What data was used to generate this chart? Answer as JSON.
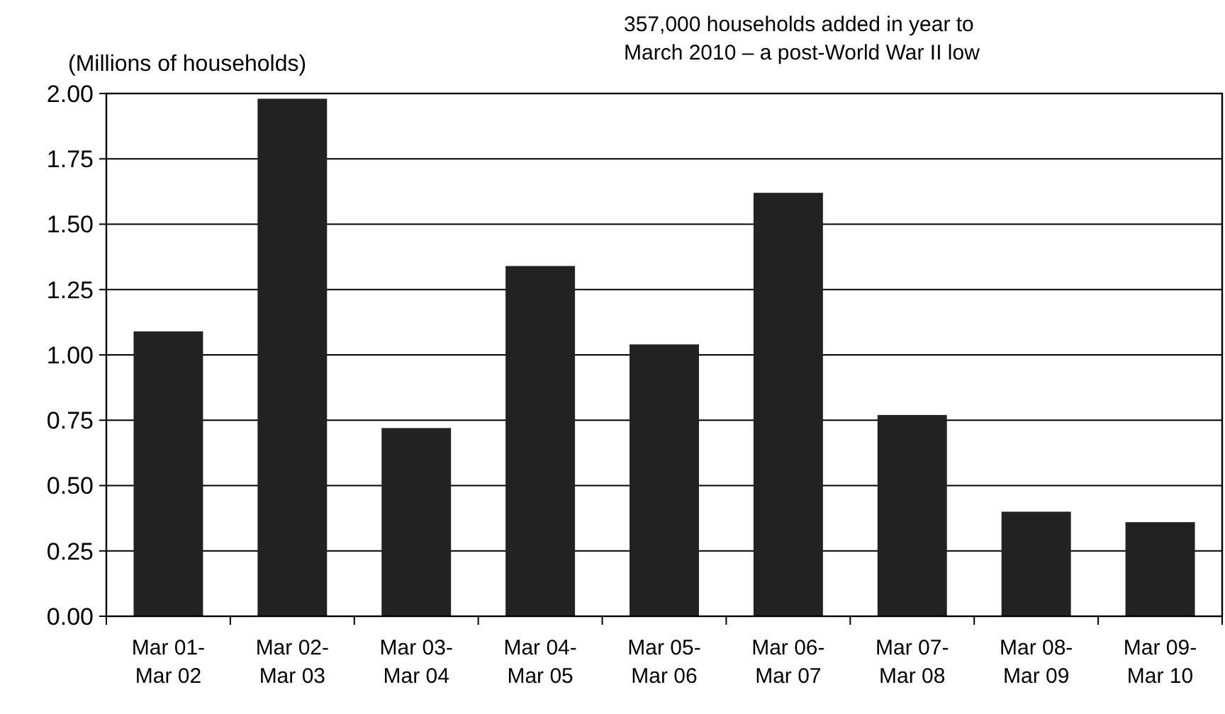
{
  "chart_data": {
    "type": "bar",
    "ylabel": "(Millions of households)",
    "annotations": [
      "357,000 households added in year to",
      "March 2010 – a post-World War II low"
    ],
    "categories": [
      "Mar 01-Mar 02",
      "Mar 02-Mar 03",
      "Mar 03-Mar 04",
      "Mar 04-Mar 05",
      "Mar 05-Mar 06",
      "Mar 06-Mar 07",
      "Mar 07-Mar 08",
      "Mar 08-Mar 09",
      "Mar 09-Mar 10"
    ],
    "values": [
      1.09,
      1.98,
      0.72,
      1.34,
      1.04,
      1.62,
      0.77,
      0.4,
      0.36
    ],
    "color": "#222222",
    "ylim": [
      0,
      2
    ],
    "yticks": [
      {
        "value": 0,
        "label": "0.00"
      },
      {
        "value": 0.25,
        "label": "0.25"
      },
      {
        "value": 0.5,
        "label": "0.50"
      },
      {
        "value": 0.75,
        "label": "0.75"
      },
      {
        "value": 1,
        "label": "1.00"
      },
      {
        "value": 1.25,
        "label": "1.25"
      },
      {
        "value": 1.5,
        "label": "1.50"
      },
      {
        "value": 1.75,
        "label": "1.75"
      },
      {
        "value": 2,
        "label": "2.00"
      }
    ],
    "grid": "y"
  }
}
